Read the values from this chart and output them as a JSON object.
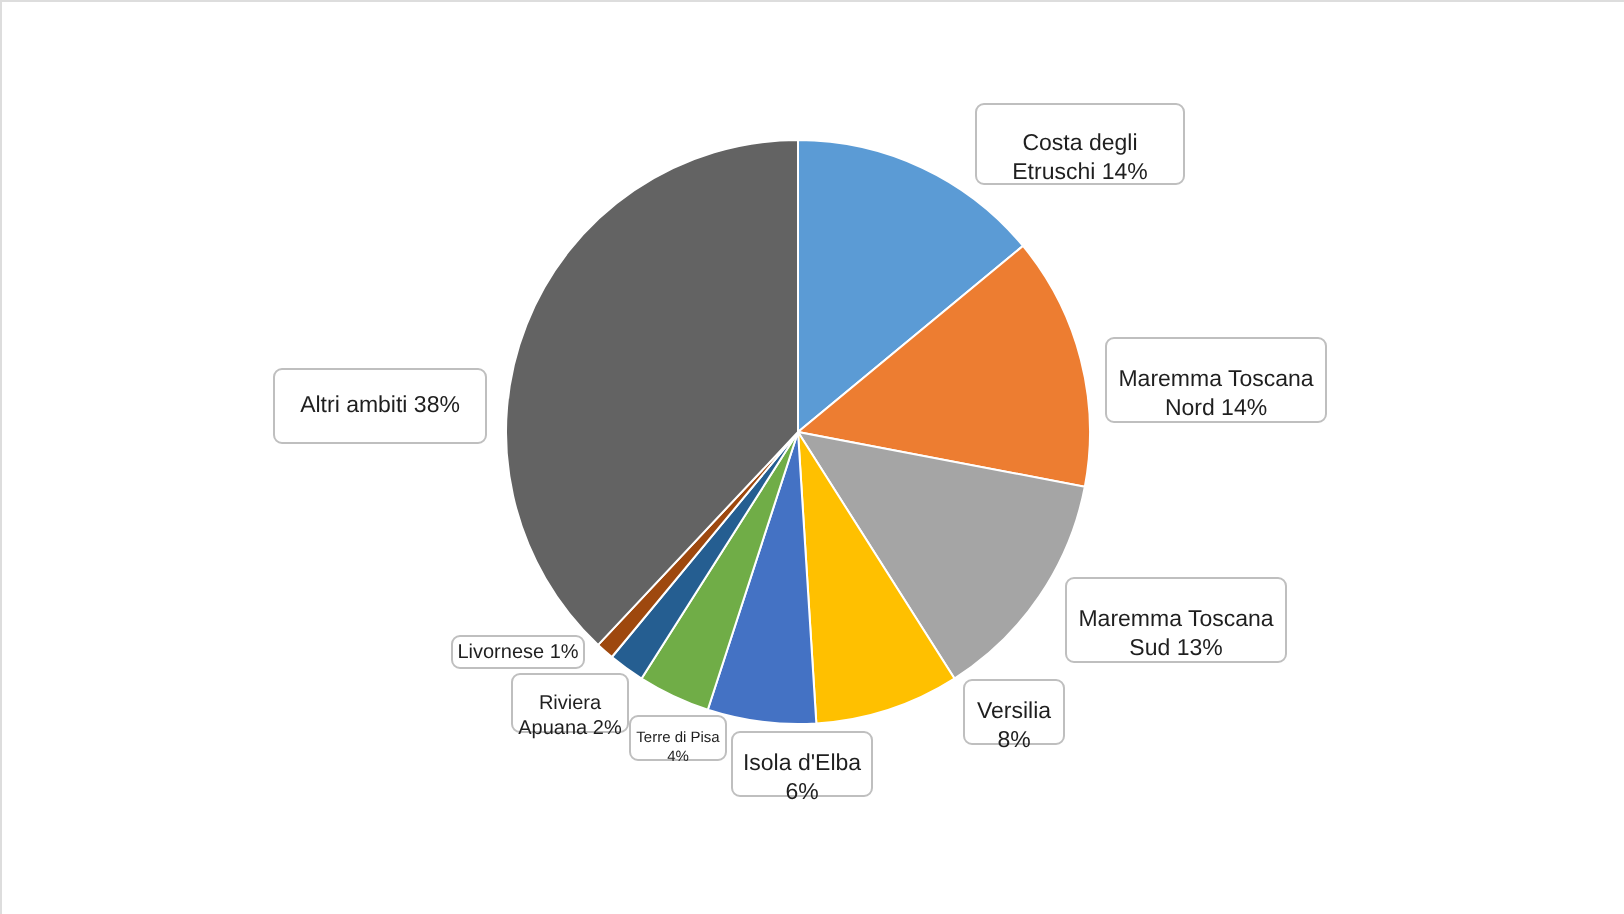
{
  "chart_data": {
    "type": "pie",
    "categories": [
      "Costa degli Etruschi",
      "Maremma Toscana Nord",
      "Maremma Toscana Sud",
      "Versilia",
      "Isola d'Elba",
      "Terre di Pisa",
      "Riviera Apuana",
      "Livornese",
      "Altri ambiti"
    ],
    "values": [
      14,
      14,
      13,
      8,
      6,
      4,
      2,
      1,
      38
    ],
    "value_labels": [
      "14%",
      "14%",
      "13%",
      "8%",
      "6%",
      "4%",
      "2%",
      "1%",
      "38%"
    ],
    "colors": [
      "#5b9bd5",
      "#ed7d31",
      "#a5a5a5",
      "#ffc000",
      "#4472c4",
      "#70ad47",
      "#255e91",
      "#9e480e",
      "#636363"
    ]
  }
}
